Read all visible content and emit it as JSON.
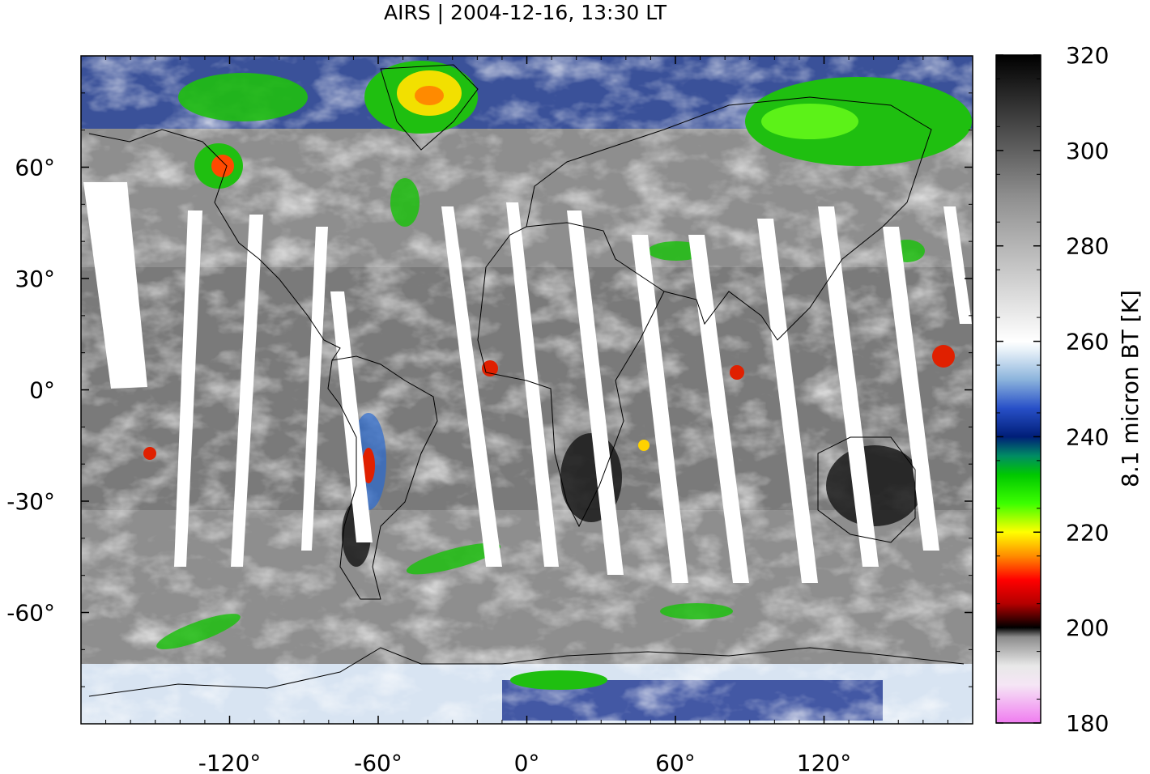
{
  "title": "AIRS | 2004-12-16, 13:30 LT",
  "map": {
    "projection": "equirectangular",
    "lon_ticks": [
      {
        "value": -120,
        "label": "-120°"
      },
      {
        "value": -60,
        "label": "-60°"
      },
      {
        "value": 0,
        "label": "0°"
      },
      {
        "value": 60,
        "label": "60°"
      },
      {
        "value": 120,
        "label": "120°"
      }
    ],
    "lat_ticks": [
      {
        "value": 60,
        "label": "60°"
      },
      {
        "value": 30,
        "label": "30°"
      },
      {
        "value": 0,
        "label": "0°"
      },
      {
        "value": -30,
        "label": "-30°"
      },
      {
        "value": -60,
        "label": "-60°"
      }
    ],
    "lon_range": [
      -180,
      180
    ],
    "lat_range": [
      -90,
      90
    ]
  },
  "colorbar": {
    "label": "8.1 micron BT [K]",
    "min": 180,
    "max": 320,
    "ticks": [
      {
        "value": 320,
        "label": "320"
      },
      {
        "value": 300,
        "label": "300"
      },
      {
        "value": 280,
        "label": "280"
      },
      {
        "value": 260,
        "label": "260"
      },
      {
        "value": 240,
        "label": "240"
      },
      {
        "value": 220,
        "label": "220"
      },
      {
        "value": 200,
        "label": "200"
      },
      {
        "value": 180,
        "label": "180"
      }
    ],
    "stops": [
      {
        "value": 180,
        "color": "#f07cf0"
      },
      {
        "value": 188,
        "color": "#f5e6f5"
      },
      {
        "value": 192,
        "color": "#e8e8e8"
      },
      {
        "value": 198,
        "color": "#8c8c8c"
      },
      {
        "value": 200,
        "color": "#000000"
      },
      {
        "value": 205,
        "color": "#b40000"
      },
      {
        "value": 210,
        "color": "#ff0000"
      },
      {
        "value": 215,
        "color": "#ff8c00"
      },
      {
        "value": 220,
        "color": "#ffff00"
      },
      {
        "value": 226,
        "color": "#3cff00"
      },
      {
        "value": 232,
        "color": "#00c800"
      },
      {
        "value": 236,
        "color": "#008c64"
      },
      {
        "value": 240,
        "color": "#001e78"
      },
      {
        "value": 246,
        "color": "#2850c8"
      },
      {
        "value": 252,
        "color": "#8cb4dc"
      },
      {
        "value": 258,
        "color": "#e6f0f8"
      },
      {
        "value": 260,
        "color": "#ffffff"
      },
      {
        "value": 290,
        "color": "#909090"
      },
      {
        "value": 320,
        "color": "#000000"
      }
    ]
  }
}
